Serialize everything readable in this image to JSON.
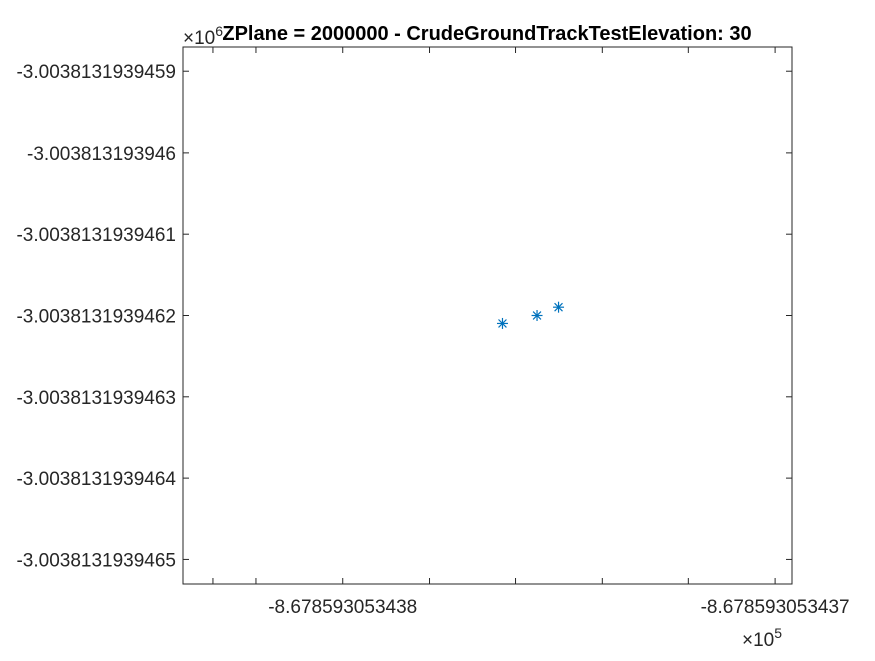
{
  "chart_data": {
    "type": "scatter",
    "title": "ZPlane = 2000000 - CrudeGroundTrackTestElevation: 30",
    "xlabel": "",
    "ylabel": "",
    "x_exponent_label": "×10",
    "x_exponent_power": "5",
    "y_exponent_label": "×10",
    "y_exponent_power": "6",
    "xlim": [
      -8.67859305343837,
      -8.67859305343696
    ],
    "ylim": [
      -3.00381319394653,
      -3.00381319394587
    ],
    "x_ticks": [
      -8.6785930534383,
      -8.6785930534382,
      -8.678593053438,
      -8.6785930534378,
      -8.6785930534376,
      -8.6785930534374,
      -8.6785930534372,
      -8.678593053437,
      -8.6785930534368
    ],
    "x_tick_labels": [
      "",
      "",
      "-8.678593053438",
      "",
      "",
      "",
      "",
      "-8.678593053437",
      ""
    ],
    "y_ticks": [
      -3.0038131939459,
      -3.003813193946,
      -3.0038131939461,
      -3.0038131939462,
      -3.0038131939463,
      -3.0038131939464,
      -3.0038131939465
    ],
    "y_tick_labels": [
      "-3.0038131939459",
      "-3.003813193946",
      "-3.0038131939461",
      "-3.0038131939462",
      "-3.0038131939463",
      "-3.0038131939464",
      "-3.0038131939465"
    ],
    "grid": false,
    "marker": "*",
    "color": "#0072BD",
    "series": [
      {
        "x": [
          -8.67859305343763,
          -8.67859305343755,
          -8.6785930534375
        ],
        "y": [
          -3.00381319394621,
          -3.0038131939462,
          -3.00381319394619
        ]
      }
    ]
  }
}
